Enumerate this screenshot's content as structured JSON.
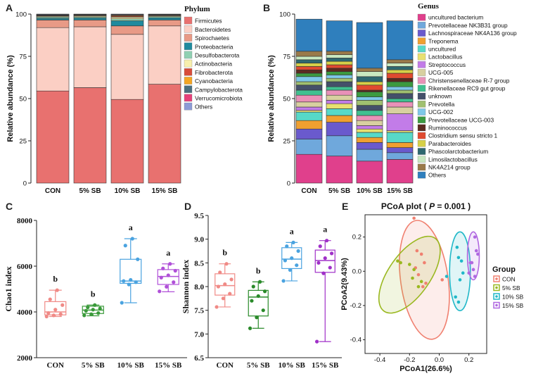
{
  "chart_data": [
    {
      "id": "A",
      "type": "bar",
      "stacked": true,
      "panel_label": "A",
      "ylabel": "Relative abundance (%)",
      "ylim": [
        0,
        100
      ],
      "yticks": [
        "0",
        "25",
        "50",
        "75",
        "100"
      ],
      "categories": [
        "CON",
        "5% SB",
        "10% SB",
        "15% SB"
      ],
      "legend_title": "Phylum",
      "series": [
        {
          "name": "Firmicutes",
          "color": "#e8716f",
          "values": [
            54.5,
            56.5,
            49.5,
            58.5
          ]
        },
        {
          "name": "Bacteroidetes",
          "color": "#fbcfc4",
          "values": [
            37.5,
            36.0,
            38.5,
            34.5
          ]
        },
        {
          "name": "Spirochaetes",
          "color": "#e89a86",
          "values": [
            4.5,
            4.0,
            5.0,
            3.5
          ]
        },
        {
          "name": "Proteobacteria",
          "color": "#1f8a9e",
          "values": [
            1.0,
            1.2,
            3.0,
            1.3
          ]
        },
        {
          "name": "Desulfobacterota",
          "color": "#8fd0b2",
          "values": [
            0.8,
            0.7,
            1.2,
            0.7
          ]
        },
        {
          "name": "Actinobacteria",
          "color": "#f7efad",
          "values": [
            0.5,
            0.6,
            1.0,
            0.5
          ]
        },
        {
          "name": "Fibrobacterota",
          "color": "#d84c3a",
          "values": [
            0.3,
            0.3,
            0.5,
            0.3
          ]
        },
        {
          "name": "Cyanobacteria",
          "color": "#f5a623",
          "values": [
            0.2,
            0.2,
            0.4,
            0.2
          ]
        },
        {
          "name": "Campylobacterota",
          "color": "#4a6f7f",
          "values": [
            0.2,
            0.2,
            0.3,
            0.2
          ]
        },
        {
          "name": "Verrucomicrobiota",
          "color": "#e6417a",
          "values": [
            0.2,
            0.1,
            0.3,
            0.1
          ]
        },
        {
          "name": "Others",
          "color": "#8c9bd6",
          "values": [
            0.3,
            0.2,
            0.3,
            0.2
          ]
        }
      ]
    },
    {
      "id": "B",
      "type": "bar",
      "stacked": true,
      "panel_label": "B",
      "ylabel": "Relative abundance (%)",
      "ylim": [
        0,
        100
      ],
      "yticks": [
        "0",
        "25",
        "50",
        "75",
        "100"
      ],
      "categories": [
        "CON",
        "5% SB",
        "10% SB",
        "15% SB"
      ],
      "legend_title": "Genus",
      "series": [
        {
          "name": "uncultured bacterium",
          "color": "#e0408c",
          "values": [
            17,
            16,
            13,
            14
          ]
        },
        {
          "name": "Prevotellaceae NK3B31 group",
          "color": "#6fa8dc",
          "values": [
            9,
            12,
            7,
            4
          ]
        },
        {
          "name": "Lachnospiraceae NK4A136 group",
          "color": "#6a5acd",
          "values": [
            6,
            8,
            4,
            3
          ]
        },
        {
          "name": "Treponema",
          "color": "#f0a030",
          "values": [
            5,
            4,
            3,
            3
          ]
        },
        {
          "name": "uncultured",
          "color": "#57d9c8",
          "values": [
            5,
            4,
            3,
            6
          ]
        },
        {
          "name": "Lactobacillus",
          "color": "#e8e070",
          "values": [
            1,
            3,
            2,
            1
          ]
        },
        {
          "name": "Streptococcus",
          "color": "#c27ce8",
          "values": [
            2,
            2,
            2,
            10
          ]
        },
        {
          "name": "UCG-005",
          "color": "#d8d0a0",
          "values": [
            3,
            3,
            3,
            4
          ]
        },
        {
          "name": "Christensenellaceae R-7 group",
          "color": "#e991b8",
          "values": [
            4,
            3,
            3,
            3
          ]
        },
        {
          "name": "Rikenellaceae RC9 gut group",
          "color": "#40c090",
          "values": [
            3,
            2,
            3,
            2
          ]
        },
        {
          "name": "unknown",
          "color": "#44506a",
          "values": [
            3,
            3,
            3,
            3
          ]
        },
        {
          "name": "Prevotella",
          "color": "#a0c070",
          "values": [
            2,
            2,
            3,
            2
          ]
        },
        {
          "name": "UCG-002",
          "color": "#7ec8e8",
          "values": [
            3,
            2,
            2,
            2
          ]
        },
        {
          "name": "Prevotellaceae UCG-003",
          "color": "#3c9a40",
          "values": [
            2,
            2,
            3,
            3
          ]
        },
        {
          "name": "Ruminococcus",
          "color": "#5c2a20",
          "values": [
            2,
            2,
            1,
            2
          ]
        },
        {
          "name": "Clostridium sensu stricto 1",
          "color": "#e04a30",
          "values": [
            2,
            2,
            3,
            3
          ]
        },
        {
          "name": "Parabacteroides",
          "color": "#d6d048",
          "values": [
            2,
            2,
            2,
            2
          ]
        },
        {
          "name": "Phascolarctobacterium",
          "color": "#2e6870",
          "values": [
            2,
            2,
            3,
            2
          ]
        },
        {
          "name": "Limosilactobacillus",
          "color": "#c8e8c0",
          "values": [
            2,
            2,
            3,
            2
          ]
        },
        {
          "name": "NK4A214 group",
          "color": "#9a7a4a",
          "values": [
            3,
            2,
            2,
            2
          ]
        },
        {
          "name": "Others",
          "color": "#2f7fbd",
          "values": [
            19,
            18,
            27,
            23
          ]
        }
      ]
    },
    {
      "id": "C",
      "type": "box",
      "panel_label": "C",
      "ylabel": "Chao1 index",
      "ylim": [
        2000,
        8000
      ],
      "yticks": [
        "2000",
        "4000",
        "6000",
        "8000"
      ],
      "categories": [
        "CON",
        "5% SB",
        "10% SB",
        "15% SB"
      ],
      "colors": [
        "#f08a86",
        "#3a9a3a",
        "#4aa3e0",
        "#b050d8"
      ],
      "boxes": [
        {
          "min": 3800,
          "q1": 3870,
          "median": 4000,
          "q3": 4450,
          "max": 4950
        },
        {
          "min": 3830,
          "q1": 3930,
          "median": 4080,
          "q3": 4250,
          "max": 4300
        },
        {
          "min": 4400,
          "q1": 5250,
          "median": 5350,
          "q3": 6300,
          "max": 7200
        },
        {
          "min": 4880,
          "q1": 5200,
          "median": 5550,
          "q3": 5850,
          "max": 6100
        }
      ],
      "points": [
        [
          3800,
          3850,
          3900,
          3950,
          4100,
          4300,
          4550,
          4950
        ],
        [
          3850,
          3900,
          3950,
          4050,
          4100,
          4150,
          4200,
          4300
        ],
        [
          4400,
          5200,
          5300,
          5350,
          5400,
          6300,
          6900,
          7200
        ],
        [
          4900,
          5100,
          5300,
          5500,
          5600,
          5800,
          5900,
          6100
        ]
      ],
      "significance": [
        "b",
        "b",
        "a",
        "a"
      ]
    },
    {
      "id": "D",
      "type": "box",
      "panel_label": "D",
      "ylabel": "Shannon index",
      "ylim": [
        6.5,
        9.5
      ],
      "yticks": [
        "6.5",
        "7.0",
        "7.5",
        "8.0",
        "8.5",
        "9.0",
        "9.5"
      ],
      "categories": [
        "CON",
        "5% SB",
        "10% SB",
        "15% SB"
      ],
      "colors": [
        "#f08a86",
        "#2a8a2a",
        "#4aa3e0",
        "#a030c8"
      ],
      "boxes": [
        {
          "min": 7.57,
          "q1": 7.82,
          "median": 8.02,
          "q3": 8.27,
          "max": 8.48
        },
        {
          "min": 7.12,
          "q1": 7.38,
          "median": 7.78,
          "q3": 7.92,
          "max": 8.1
        },
        {
          "min": 8.12,
          "q1": 8.38,
          "median": 8.58,
          "q3": 8.82,
          "max": 8.93
        },
        {
          "min": 6.84,
          "q1": 8.3,
          "median": 8.55,
          "q3": 8.77,
          "max": 8.97
        }
      ],
      "points": [
        [
          7.57,
          7.75,
          7.85,
          8.0,
          8.05,
          8.15,
          8.3,
          8.48
        ],
        [
          7.12,
          7.35,
          7.5,
          7.7,
          7.8,
          7.9,
          8.0,
          8.1
        ],
        [
          8.12,
          8.35,
          8.45,
          8.55,
          8.6,
          8.75,
          8.85,
          8.93
        ],
        [
          6.84,
          8.28,
          8.4,
          8.5,
          8.6,
          8.7,
          8.85,
          8.97
        ]
      ],
      "significance": [
        "b",
        "b",
        "a",
        "a"
      ]
    },
    {
      "id": "E",
      "type": "scatter",
      "panel_label": "E",
      "title_prefix": "PCoA plot ( ",
      "title_p": "P",
      "title_suffix": " = 0.001 )",
      "xlabel": "PCoA1(26.6%)",
      "ylabel": "PCoA2(9.43%)",
      "xlim": [
        -0.5,
        0.32
      ],
      "ylim": [
        -0.48,
        0.33
      ],
      "xticks": [
        "-0.4",
        "-0.2",
        "0.0",
        "0.2"
      ],
      "yticks": [
        "-0.4",
        "-0.2",
        "0.0",
        "0.2"
      ],
      "legend_title": "Group",
      "groups": [
        {
          "name": "CON",
          "color": "#f08070",
          "x": [
            -0.17,
            -0.15,
            -0.12,
            -0.1,
            -0.14,
            -0.16,
            -0.09,
            -0.11,
            0.02
          ],
          "y": [
            0.31,
            0.12,
            0.1,
            0.05,
            -0.02,
            0.02,
            -0.07,
            -0.09,
            -0.05
          ],
          "ellipse": {
            "cx": -0.1,
            "cy": -0.05,
            "rx": 0.16,
            "ry": 0.35,
            "angle": -8
          }
        },
        {
          "name": "5% SB",
          "color": "#9ab820",
          "x": [
            -0.28,
            -0.26,
            -0.2,
            -0.18,
            -0.14,
            -0.12,
            -0.17
          ],
          "y": [
            0.06,
            0.05,
            0.04,
            -0.04,
            -0.09,
            -0.06,
            0.01
          ],
          "ellipse": {
            "cx": -0.2,
            "cy": -0.02,
            "rx": 0.14,
            "ry": 0.26,
            "angle": 35
          }
        },
        {
          "name": "10% SB",
          "color": "#20b8c8",
          "x": [
            0.12,
            0.13,
            0.15,
            0.16,
            0.14,
            0.11,
            0.13,
            0.05
          ],
          "y": [
            0.14,
            0.08,
            0.06,
            -0.01,
            -0.05,
            -0.15,
            -0.18,
            -0.03
          ],
          "ellipse": {
            "cx": 0.14,
            "cy": 0.0,
            "rx": 0.07,
            "ry": 0.23,
            "angle": 0
          }
        },
        {
          "name": "15% SB",
          "color": "#b068e0",
          "x": [
            0.24,
            0.25,
            0.26,
            0.22,
            0.23,
            0.2,
            0.21,
            0.24
          ],
          "y": [
            0.2,
            0.12,
            0.1,
            0.05,
            0.01,
            -0.01,
            0.05,
            -0.03
          ],
          "ellipse": {
            "cx": 0.23,
            "cy": 0.09,
            "rx": 0.04,
            "ry": 0.14,
            "angle": 0
          }
        }
      ]
    }
  ]
}
